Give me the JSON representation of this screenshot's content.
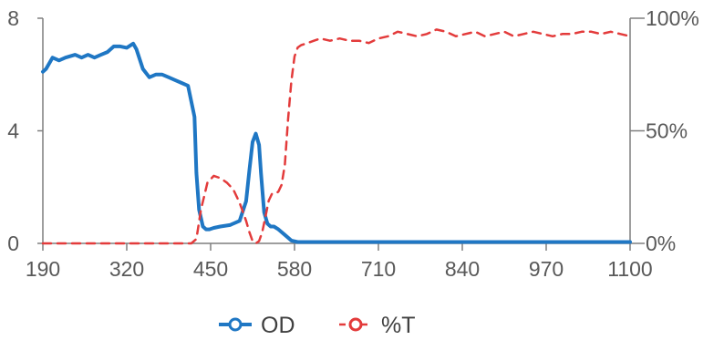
{
  "chart_data": {
    "type": "line",
    "title": "",
    "xlabel": "",
    "ylabel": "",
    "y2label": "",
    "xlim": [
      190,
      1100
    ],
    "ylim": [
      0,
      8
    ],
    "y2lim": [
      0,
      100
    ],
    "x_ticks": [
      190,
      320,
      450,
      580,
      710,
      840,
      970,
      1100
    ],
    "y_ticks": [
      0,
      4,
      8
    ],
    "y2_ticks": [
      "0%",
      "50%",
      "100%"
    ],
    "y2_tick_values": [
      0,
      50,
      100
    ],
    "grid": false,
    "legend_position": "bottom",
    "series": [
      {
        "name": "OD",
        "axis": "left",
        "color": "#1f77c4",
        "style": "solid",
        "x": [
          190,
          195,
          205,
          215,
          225,
          240,
          250,
          260,
          270,
          280,
          290,
          300,
          310,
          320,
          330,
          335,
          345,
          355,
          365,
          375,
          385,
          395,
          405,
          415,
          425,
          428,
          432,
          438,
          443,
          448,
          455,
          465,
          480,
          495,
          505,
          510,
          515,
          520,
          525,
          528,
          533,
          538,
          543,
          548,
          555,
          565,
          575,
          585,
          600,
          650,
          700,
          750,
          800,
          850,
          900,
          950,
          1000,
          1050,
          1100
        ],
        "y": [
          6.1,
          6.2,
          6.6,
          6.5,
          6.6,
          6.7,
          6.6,
          6.7,
          6.6,
          6.7,
          6.8,
          7.0,
          7.0,
          6.95,
          7.1,
          6.9,
          6.2,
          5.9,
          6.0,
          6.0,
          5.9,
          5.8,
          5.7,
          5.6,
          4.5,
          2.5,
          1.2,
          0.6,
          0.5,
          0.5,
          0.55,
          0.6,
          0.65,
          0.8,
          1.5,
          2.6,
          3.6,
          3.9,
          3.5,
          2.5,
          1.1,
          0.7,
          0.6,
          0.6,
          0.5,
          0.3,
          0.1,
          0.05,
          0.05,
          0.05,
          0.05,
          0.05,
          0.05,
          0.05,
          0.05,
          0.05,
          0.05,
          0.05,
          0.05
        ]
      },
      {
        "name": "%T",
        "axis": "right",
        "color": "#e33b3b",
        "style": "dashed",
        "x": [
          190,
          250,
          300,
          350,
          400,
          420,
          428,
          435,
          445,
          455,
          465,
          475,
          485,
          495,
          505,
          510,
          515,
          520,
          525,
          530,
          535,
          540,
          545,
          550,
          555,
          560,
          565,
          570,
          575,
          580,
          585,
          590,
          600,
          610,
          620,
          635,
          650,
          665,
          680,
          695,
          710,
          725,
          740,
          755,
          770,
          785,
          800,
          815,
          830,
          845,
          860,
          875,
          890,
          905,
          920,
          935,
          950,
          965,
          980,
          995,
          1010,
          1025,
          1040,
          1055,
          1070,
          1085,
          1100
        ],
        "y": [
          0,
          0,
          0,
          0,
          0,
          0,
          2,
          15,
          27,
          30,
          29,
          27,
          24,
          18,
          10,
          5,
          1,
          0,
          1,
          5,
          12,
          19,
          22,
          22,
          23,
          26,
          35,
          55,
          72,
          83,
          87,
          88,
          89,
          90,
          91,
          90,
          91,
          90,
          90,
          89,
          91,
          92,
          94,
          93,
          92,
          93,
          95,
          94,
          92,
          93,
          94,
          92,
          93,
          94,
          92,
          93,
          94,
          93,
          92,
          93,
          93,
          94,
          94,
          93,
          94,
          93,
          92
        ]
      }
    ]
  }
}
